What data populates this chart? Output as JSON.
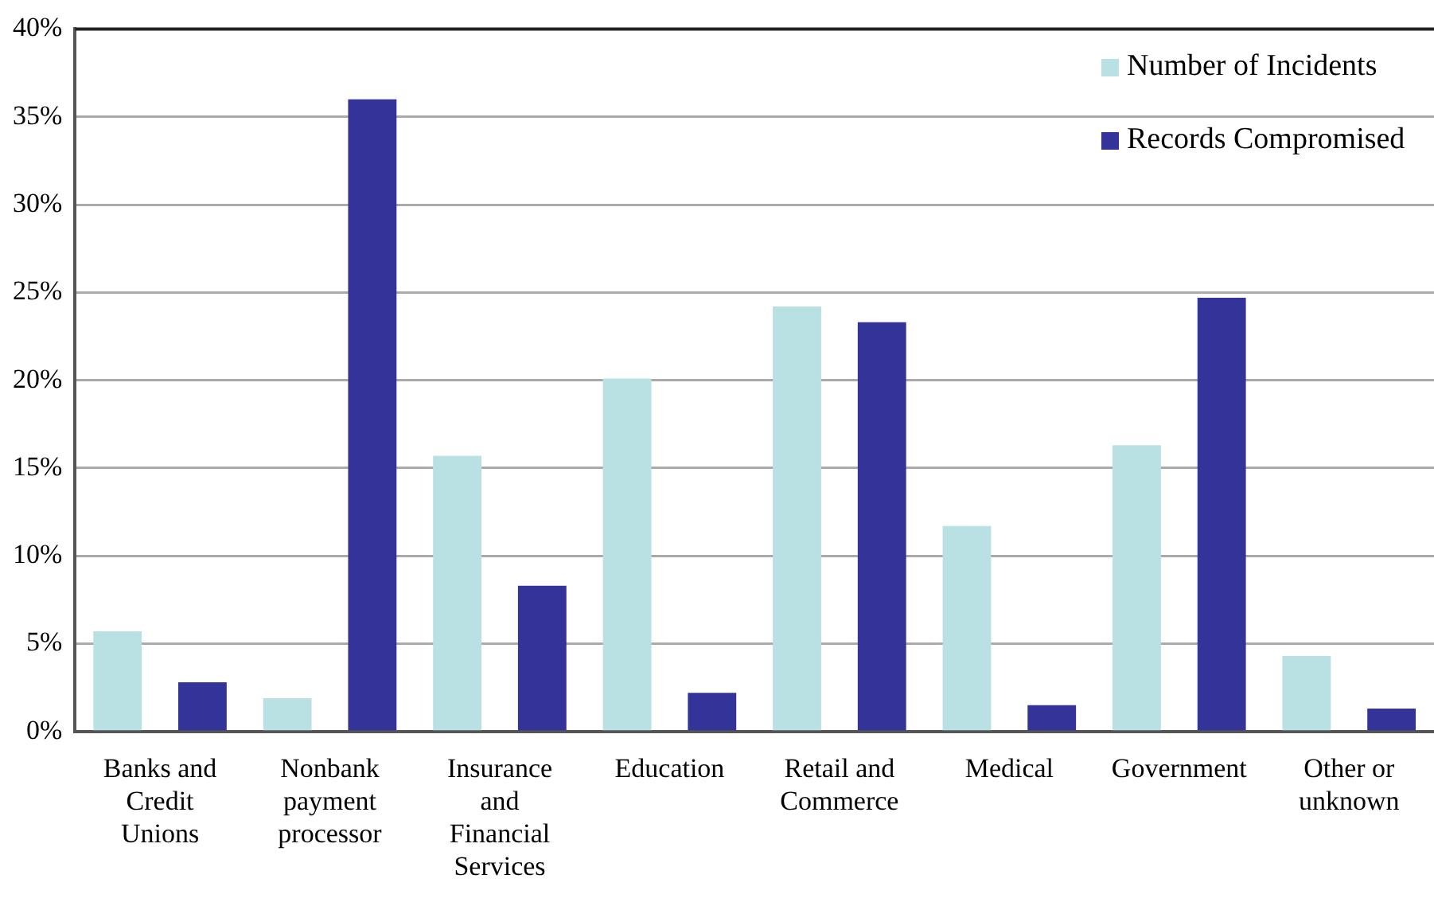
{
  "chart_data": {
    "type": "bar",
    "categories": [
      "Banks and Credit Unions",
      "Nonbank payment processor",
      "Insurance and Financial Services",
      "Education",
      "Retail and Commerce",
      "Medical",
      "Government",
      "Other or unknown"
    ],
    "series": [
      {
        "name": "Number of Incidents",
        "color": "#b9e0e3",
        "values": [
          5.7,
          1.9,
          15.7,
          20.1,
          24.2,
          11.7,
          16.3,
          4.3
        ]
      },
      {
        "name": "Records Compromised",
        "color": "#333399",
        "values": [
          2.8,
          36.0,
          8.3,
          2.2,
          23.3,
          1.5,
          24.7,
          1.3
        ]
      }
    ],
    "ylim": [
      0,
      40
    ],
    "yticks": [
      {
        "value": 0,
        "label": "0%"
      },
      {
        "value": 5,
        "label": "5%"
      },
      {
        "value": 10,
        "label": "10%"
      },
      {
        "value": 15,
        "label": "15%"
      },
      {
        "value": 20,
        "label": "20%"
      },
      {
        "value": 25,
        "label": "25%"
      },
      {
        "value": 30,
        "label": "30%"
      },
      {
        "value": 35,
        "label": "35%"
      },
      {
        "value": 40,
        "label": "40%"
      }
    ],
    "grid": "y",
    "legend": "top right"
  }
}
